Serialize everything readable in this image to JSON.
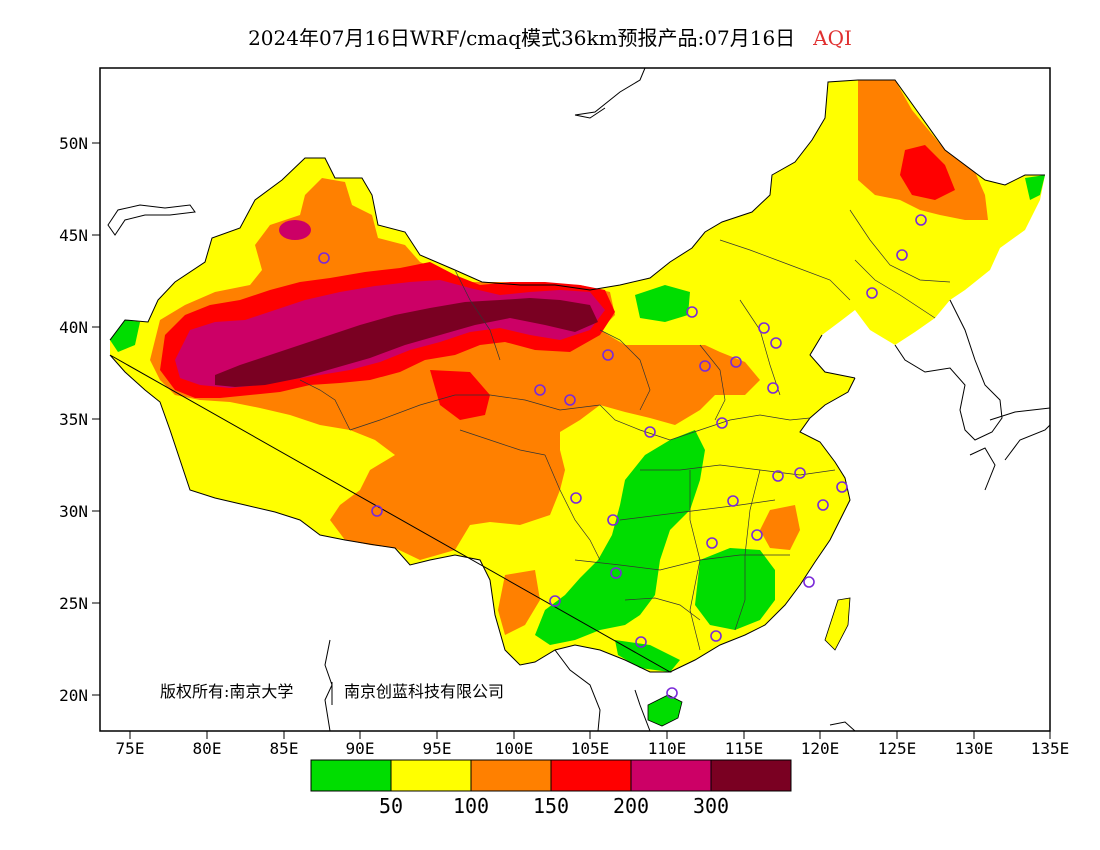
{
  "title": {
    "main": "2024年07月16日WRF/cmaq模式36km预报产品:07月16日",
    "variable": "AQI",
    "variable_color": "#e03030"
  },
  "axes": {
    "lat_ticks": [
      "50N",
      "45N",
      "40N",
      "35N",
      "30N",
      "25N",
      "20N"
    ],
    "lon_ticks": [
      "75E",
      "80E",
      "85E",
      "90E",
      "95E",
      "100E",
      "105E",
      "110E",
      "115E",
      "120E",
      "125E",
      "130E",
      "135E"
    ]
  },
  "copyright": {
    "part1": "版权所有:南京大学",
    "part2": "南京创蓝科技有限公司"
  },
  "legend": {
    "colors": [
      "#00dd00",
      "#ffff00",
      "#ff8000",
      "#ff0000",
      "#cc0066",
      "#7a0022"
    ],
    "labels": [
      "50",
      "100",
      "150",
      "200",
      "300"
    ]
  },
  "colors": {
    "green": "#00dd00",
    "yellow": "#ffff00",
    "orange": "#ff8000",
    "red": "#ff0000",
    "magenta": "#cc0066",
    "maroon": "#7a0022",
    "station_marker": "#7a2ad8"
  }
}
